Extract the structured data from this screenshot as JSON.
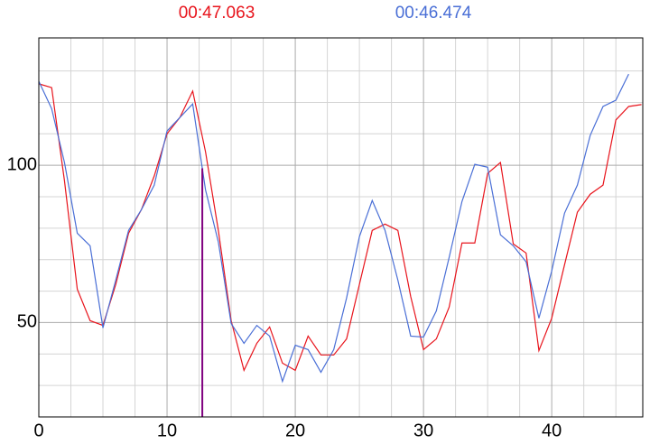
{
  "chart_data": {
    "type": "line",
    "x": [
      0,
      1,
      2,
      3,
      4,
      5,
      6,
      7,
      8,
      9,
      10,
      11,
      12,
      13,
      14,
      15,
      16,
      17,
      18,
      19,
      20,
      21,
      22,
      23,
      24,
      25,
      26,
      27,
      28,
      29,
      30,
      31,
      32,
      33,
      34,
      35,
      36,
      37,
      38,
      39,
      40,
      41,
      42,
      43,
      44,
      45,
      46,
      47
    ],
    "series": [
      {
        "name": "00:47.063",
        "color": "#e8141c",
        "values": [
          125.9,
          124.7,
          95.1,
          60.6,
          50.6,
          49.1,
          62.1,
          78.4,
          85.9,
          96.6,
          110,
          115.2,
          123.6,
          104.3,
          79.3,
          50.6,
          34.8,
          43.4,
          48.6,
          37.1,
          34.8,
          45.7,
          39.7,
          39.7,
          44.8,
          62.1,
          79.3,
          81.3,
          79.3,
          58.3,
          41.4,
          44.8,
          54.9,
          75.3,
          75.3,
          97.4,
          100.9,
          75,
          72.1,
          41.1,
          51.4,
          68.4,
          85.1,
          90.8,
          93.7,
          114.4,
          118.7,
          119.3
        ]
      },
      {
        "name": "00:46.474",
        "color": "#4a6fd6",
        "values": [
          126.7,
          118,
          100.9,
          78.4,
          74.4,
          48.3,
          63.5,
          79.3,
          85.9,
          93.7,
          110.9,
          115.2,
          119.5,
          92.2,
          75.6,
          49.7,
          43.4,
          49.1,
          45.7,
          31.3,
          42.8,
          41.4,
          34.2,
          41.4,
          57.8,
          77.3,
          88.8,
          79.3,
          63.5,
          45.7,
          45.4,
          53.7,
          70.7,
          88.5,
          100.3,
          99.4,
          77.9,
          74.4,
          69.3,
          51.4,
          66.4,
          84.8,
          93.7,
          109.5,
          118.7,
          120.7,
          129,
          null
        ]
      }
    ],
    "xlim": [
      0,
      47.1
    ],
    "ylim": [
      20,
      140.5
    ],
    "xticks": [
      0,
      10,
      20,
      30,
      40
    ],
    "yticks": [
      50,
      100
    ],
    "xminorticks": [
      2.5,
      5,
      7.5,
      12.5,
      15,
      17.5,
      22.5,
      25,
      27.5,
      32.5,
      35,
      37.5,
      42.5,
      45
    ],
    "yminorticks": [
      30,
      40,
      60,
      70,
      80,
      90,
      110,
      120,
      130
    ],
    "grid": true,
    "cursor_x": 12.75,
    "cursor_color": "#800080"
  }
}
